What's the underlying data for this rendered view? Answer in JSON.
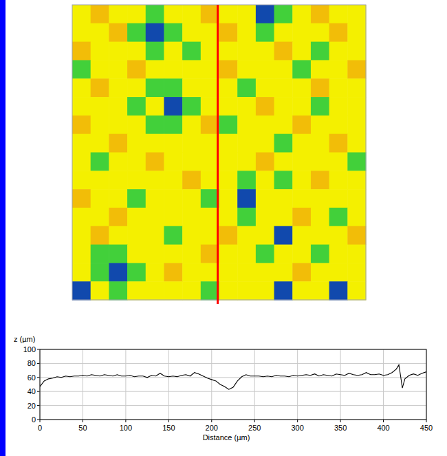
{
  "chart_data": [
    {
      "type": "heatmap",
      "xlim": [
        0,
        450
      ],
      "ylim": [
        0,
        450
      ],
      "tick_labels": false,
      "profile_x": 223,
      "profile_color": "#ff0000",
      "color_range": [
        40,
        70
      ],
      "color_stops": [
        {
          "value": 40,
          "color": "#0a28c8"
        },
        {
          "value": 50,
          "color": "#2ecc40"
        },
        {
          "value": 60,
          "color": "#f4f000"
        },
        {
          "value": 64,
          "color": "#f4f000"
        },
        {
          "value": 70,
          "color": "#f08a10"
        }
      ],
      "cells": [
        [
          62,
          67,
          62,
          62,
          51,
          62,
          62,
          67,
          62,
          62,
          42,
          51,
          62,
          67,
          62,
          62
        ],
        [
          62,
          62,
          67,
          51,
          42,
          51,
          62,
          62,
          67,
          62,
          51,
          62,
          62,
          62,
          67,
          62
        ],
        [
          67,
          62,
          62,
          62,
          51,
          62,
          51,
          62,
          62,
          62,
          62,
          67,
          62,
          51,
          62,
          62
        ],
        [
          51,
          62,
          62,
          67,
          62,
          62,
          62,
          62,
          67,
          62,
          62,
          62,
          51,
          62,
          62,
          67
        ],
        [
          62,
          67,
          62,
          62,
          51,
          51,
          62,
          62,
          62,
          51,
          62,
          62,
          62,
          67,
          62,
          62
        ],
        [
          62,
          62,
          62,
          51,
          62,
          42,
          51,
          62,
          62,
          62,
          67,
          62,
          62,
          51,
          62,
          62
        ],
        [
          67,
          62,
          62,
          62,
          51,
          51,
          62,
          67,
          51,
          62,
          62,
          62,
          67,
          62,
          62,
          62
        ],
        [
          62,
          62,
          67,
          62,
          62,
          62,
          62,
          62,
          62,
          62,
          62,
          51,
          62,
          62,
          67,
          62
        ],
        [
          62,
          51,
          62,
          62,
          67,
          62,
          62,
          62,
          62,
          62,
          67,
          62,
          62,
          62,
          62,
          51
        ],
        [
          62,
          62,
          62,
          62,
          62,
          62,
          67,
          62,
          62,
          51,
          62,
          51,
          62,
          67,
          62,
          62
        ],
        [
          67,
          62,
          62,
          51,
          62,
          62,
          62,
          51,
          62,
          42,
          62,
          62,
          62,
          62,
          62,
          62
        ],
        [
          62,
          62,
          67,
          62,
          62,
          62,
          62,
          62,
          62,
          51,
          62,
          62,
          67,
          62,
          51,
          62
        ],
        [
          62,
          67,
          62,
          62,
          62,
          51,
          62,
          62,
          67,
          62,
          62,
          42,
          62,
          62,
          62,
          67
        ],
        [
          62,
          51,
          51,
          62,
          62,
          62,
          62,
          67,
          62,
          62,
          51,
          62,
          62,
          51,
          62,
          62
        ],
        [
          62,
          51,
          42,
          51,
          62,
          67,
          62,
          62,
          62,
          62,
          62,
          62,
          67,
          62,
          62,
          62
        ],
        [
          42,
          62,
          51,
          62,
          62,
          62,
          62,
          51,
          62,
          62,
          62,
          42,
          62,
          62,
          42,
          62
        ]
      ]
    },
    {
      "type": "line",
      "x_label": "Distance (µm)",
      "y_label": "z (µm)",
      "xlim": [
        0,
        450
      ],
      "ylim": [
        0,
        100
      ],
      "xticks": [
        0,
        50,
        100,
        150,
        200,
        250,
        300,
        350,
        400,
        450
      ],
      "yticks": [
        0,
        20,
        40,
        60,
        80,
        100
      ],
      "grid": true,
      "color": "#000000",
      "x": [
        0,
        5,
        10,
        15,
        20,
        25,
        30,
        35,
        40,
        45,
        50,
        55,
        60,
        65,
        70,
        75,
        80,
        85,
        90,
        95,
        100,
        105,
        110,
        115,
        120,
        125,
        130,
        135,
        140,
        145,
        150,
        155,
        160,
        165,
        170,
        175,
        180,
        185,
        190,
        195,
        200,
        205,
        210,
        215,
        220,
        225,
        230,
        235,
        240,
        245,
        250,
        255,
        260,
        265,
        270,
        275,
        280,
        285,
        290,
        295,
        300,
        305,
        310,
        315,
        320,
        325,
        330,
        335,
        340,
        345,
        350,
        355,
        360,
        365,
        370,
        375,
        380,
        385,
        390,
        395,
        400,
        405,
        410,
        415,
        418,
        420,
        422,
        425,
        430,
        435,
        440,
        445,
        450
      ],
      "values": [
        47,
        55,
        58,
        59,
        61,
        60,
        62,
        61,
        62,
        62,
        63,
        62,
        64,
        63,
        62,
        64,
        63,
        62,
        64,
        62,
        62,
        63,
        61,
        62,
        62,
        60,
        63,
        62,
        66,
        62,
        61,
        62,
        61,
        63,
        64,
        62,
        67,
        65,
        62,
        59,
        57,
        55,
        50,
        47,
        43,
        46,
        55,
        61,
        64,
        62,
        62,
        62,
        61,
        62,
        61,
        63,
        62,
        62,
        61,
        63,
        62,
        63,
        64,
        63,
        65,
        62,
        64,
        63,
        62,
        65,
        64,
        63,
        66,
        64,
        63,
        64,
        67,
        64,
        64,
        65,
        63,
        64,
        67,
        72,
        78,
        62,
        45,
        58,
        63,
        65,
        63,
        66,
        68
      ]
    }
  ]
}
